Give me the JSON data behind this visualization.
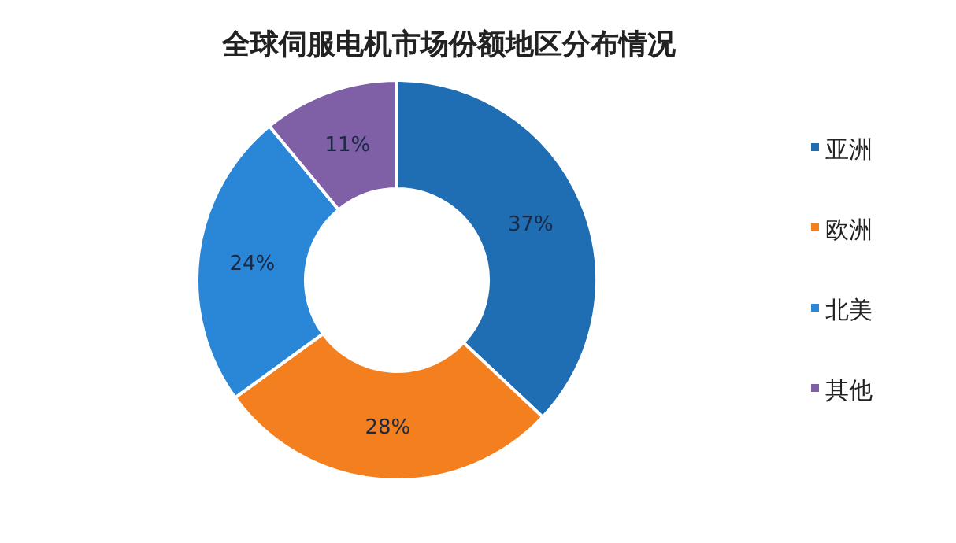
{
  "chart_data": {
    "type": "donut",
    "title": "全球伺服电机市场份额地区分布情况",
    "categories": [
      "亚洲",
      "欧洲",
      "北美",
      "其他"
    ],
    "values": [
      37,
      28,
      24,
      11
    ],
    "colors": [
      "#1f6db3",
      "#f47f1f",
      "#2a86d6",
      "#7f5fa6"
    ],
    "value_labels": [
      "37%",
      "28%",
      "24%",
      "11%"
    ],
    "legend": "right"
  }
}
